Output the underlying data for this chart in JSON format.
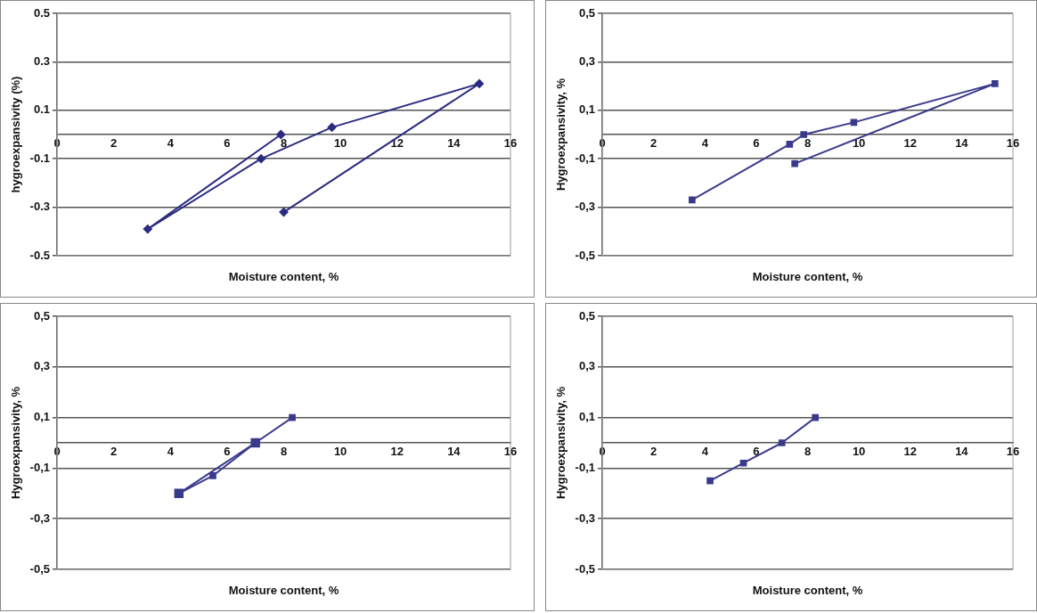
{
  "chart_data": [
    {
      "type": "line",
      "xlabel": "Moisture content, %",
      "ylabel": "hygroexpansivity (%)",
      "xlim": [
        0,
        16
      ],
      "xticks": [
        0,
        2,
        4,
        6,
        8,
        10,
        12,
        14,
        16
      ],
      "ylim": [
        -0.5,
        0.5
      ],
      "yticks": [
        0.5,
        0.3,
        0.1,
        -0.1,
        -0.3,
        -0.5
      ],
      "grid": "y",
      "marker": "diamond",
      "line_style": "solid",
      "series": [
        {
          "color": "#2b2b80",
          "x": [
            7.9,
            3.2,
            7.2,
            9.7,
            14.9,
            8.0
          ],
          "values": [
            0.0,
            -0.39,
            -0.1,
            0.03,
            0.21,
            -0.32
          ]
        }
      ]
    },
    {
      "type": "line",
      "xlabel": "Moisture content, %",
      "ylabel": "Hygroexpansivity, %",
      "xlim": [
        0,
        16
      ],
      "xticks": [
        0,
        2,
        4,
        6,
        8,
        10,
        12,
        14,
        16
      ],
      "ylim": [
        -0.5,
        0.5
      ],
      "yticks": [
        {
          "value": 0.5,
          "label": "0,5"
        },
        {
          "value": 0.3,
          "label": "0,3"
        },
        {
          "value": 0.1,
          "label": "0,1"
        },
        {
          "value": -0.1,
          "label": "-0,1"
        },
        {
          "value": -0.3,
          "label": "-0,3"
        },
        {
          "value": -0.5,
          "label": "-0,5"
        }
      ],
      "grid": "y",
      "marker": "square",
      "line_style": "solid",
      "series": [
        {
          "color": "#3a3a8c",
          "x": [
            3.5,
            7.3,
            7.85,
            9.8,
            15.3,
            7.5
          ],
          "values": [
            -0.27,
            -0.04,
            0.0,
            0.05,
            0.21,
            -0.12
          ]
        }
      ]
    },
    {
      "type": "line",
      "xlabel": "Moisture content, %",
      "ylabel": "Hygroexpansivity, %",
      "xlim": [
        0,
        16
      ],
      "xticks": [
        0,
        2,
        4,
        6,
        8,
        10,
        12,
        14,
        16
      ],
      "ylim": [
        -0.5,
        0.5
      ],
      "yticks": [
        {
          "value": 0.5,
          "label": "0,5"
        },
        {
          "value": 0.3,
          "label": "0,3"
        },
        {
          "value": 0.1,
          "label": "0,1"
        },
        {
          "value": -0.1,
          "label": "-0,1"
        },
        {
          "value": -0.3,
          "label": "-0,3"
        },
        {
          "value": -0.5,
          "label": "-0,5"
        }
      ],
      "grid": "y",
      "marker": "square",
      "line_style": "solid",
      "series": [
        {
          "color": "#3a3a8c",
          "x": [
            4.3,
            5.5,
            7.0,
            8.3
          ],
          "values": [
            -0.2,
            -0.13,
            0.0,
            0.1
          ]
        },
        {
          "color": "#3a3a8c",
          "x": [
            4.3,
            7.0
          ],
          "values": [
            -0.2,
            0.0
          ]
        }
      ]
    },
    {
      "type": "line",
      "xlabel": "Moisture content, %",
      "ylabel": "Hygroexpansivity, %",
      "xlim": [
        0,
        16
      ],
      "xticks": [
        0,
        2,
        4,
        6,
        8,
        10,
        12,
        14,
        16
      ],
      "ylim": [
        -0.5,
        0.5
      ],
      "yticks": [
        {
          "value": 0.5,
          "label": "0,5"
        },
        {
          "value": 0.3,
          "label": "0,3"
        },
        {
          "value": 0.1,
          "label": "0,1"
        },
        {
          "value": -0.1,
          "label": "-0,1"
        },
        {
          "value": -0.3,
          "label": "-0,3"
        },
        {
          "value": -0.5,
          "label": "-0,5"
        }
      ],
      "grid": "y",
      "marker": "square",
      "line_style": "solid",
      "series": [
        {
          "color": "#3a3a8c",
          "x": [
            4.2,
            5.5,
            7.0,
            8.3
          ],
          "values": [
            -0.15,
            -0.08,
            0.0,
            0.1
          ]
        }
      ]
    }
  ]
}
